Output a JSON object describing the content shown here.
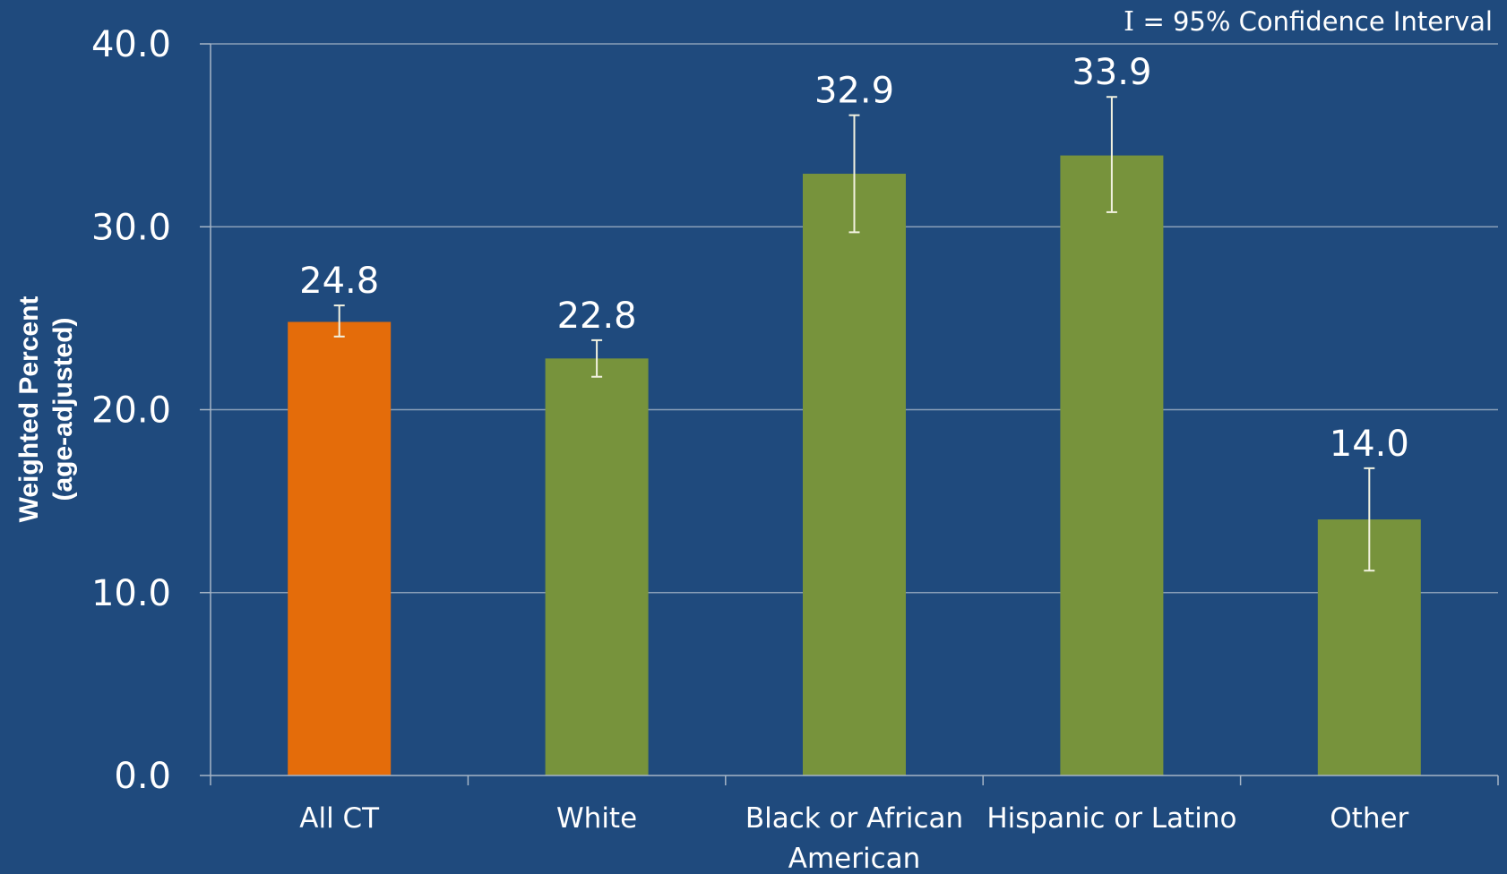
{
  "colors": {
    "background": "#1f4a7d",
    "all_ct_bar": "#e46c0a",
    "group_bar": "#77933c",
    "text": "#ffffff",
    "grid": "#8a9fb8",
    "axis": "#a6b5c6",
    "error_bar": "#f2f2e0"
  },
  "legend": {
    "icon": "I",
    "text": "= 95% Confidence Interval"
  },
  "chart_data": {
    "type": "bar",
    "ylabel_line1": "Weighted Percent",
    "ylabel_line2": "(age-adjusted)",
    "ylim": [
      0,
      40
    ],
    "yticks": [
      "0.0",
      "10.0",
      "20.0",
      "30.0",
      "40.0"
    ],
    "grid": true,
    "categories": [
      [
        "All CT"
      ],
      [
        "White"
      ],
      [
        "Black or African",
        "American"
      ],
      [
        "Hispanic or Latino"
      ],
      [
        "Other"
      ]
    ],
    "values": [
      24.8,
      22.8,
      32.9,
      33.9,
      14.0
    ],
    "value_labels": [
      "24.8",
      "22.8",
      "32.9",
      "33.9",
      "14.0"
    ],
    "ci_lower": [
      24.0,
      21.8,
      29.7,
      30.8,
      11.2
    ],
    "ci_upper": [
      25.7,
      23.8,
      36.1,
      37.1,
      16.8
    ],
    "bar_colors": [
      "#e46c0a",
      "#77933c",
      "#77933c",
      "#77933c",
      "#77933c"
    ]
  }
}
